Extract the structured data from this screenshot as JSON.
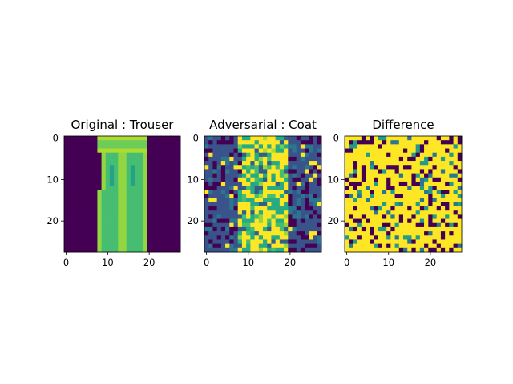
{
  "chart_data": [
    {
      "type": "heatmap",
      "title": "Original : Trouser",
      "x_ticks": [
        0,
        10,
        20
      ],
      "y_ticks": [
        0,
        10,
        20
      ],
      "xlim": [
        -0.5,
        27.5
      ],
      "ylim": [
        27.5,
        -0.5
      ],
      "grid": false,
      "colormap": "viridis",
      "pattern": "trouser"
    },
    {
      "type": "heatmap",
      "title": "Adversarial : Coat",
      "x_ticks": [
        0,
        10,
        20
      ],
      "y_ticks": [
        0,
        10,
        20
      ],
      "xlim": [
        -0.5,
        27.5
      ],
      "ylim": [
        27.5,
        -0.5
      ],
      "grid": false,
      "colormap": "viridis",
      "pattern": "adversarial"
    },
    {
      "type": "heatmap",
      "title": "Difference",
      "x_ticks": [
        0,
        10,
        20
      ],
      "y_ticks": [
        0,
        10,
        20
      ],
      "xlim": [
        -0.5,
        27.5
      ],
      "ylim": [
        27.5,
        -0.5
      ],
      "grid": false,
      "colormap": "viridis",
      "pattern": "difference"
    }
  ]
}
